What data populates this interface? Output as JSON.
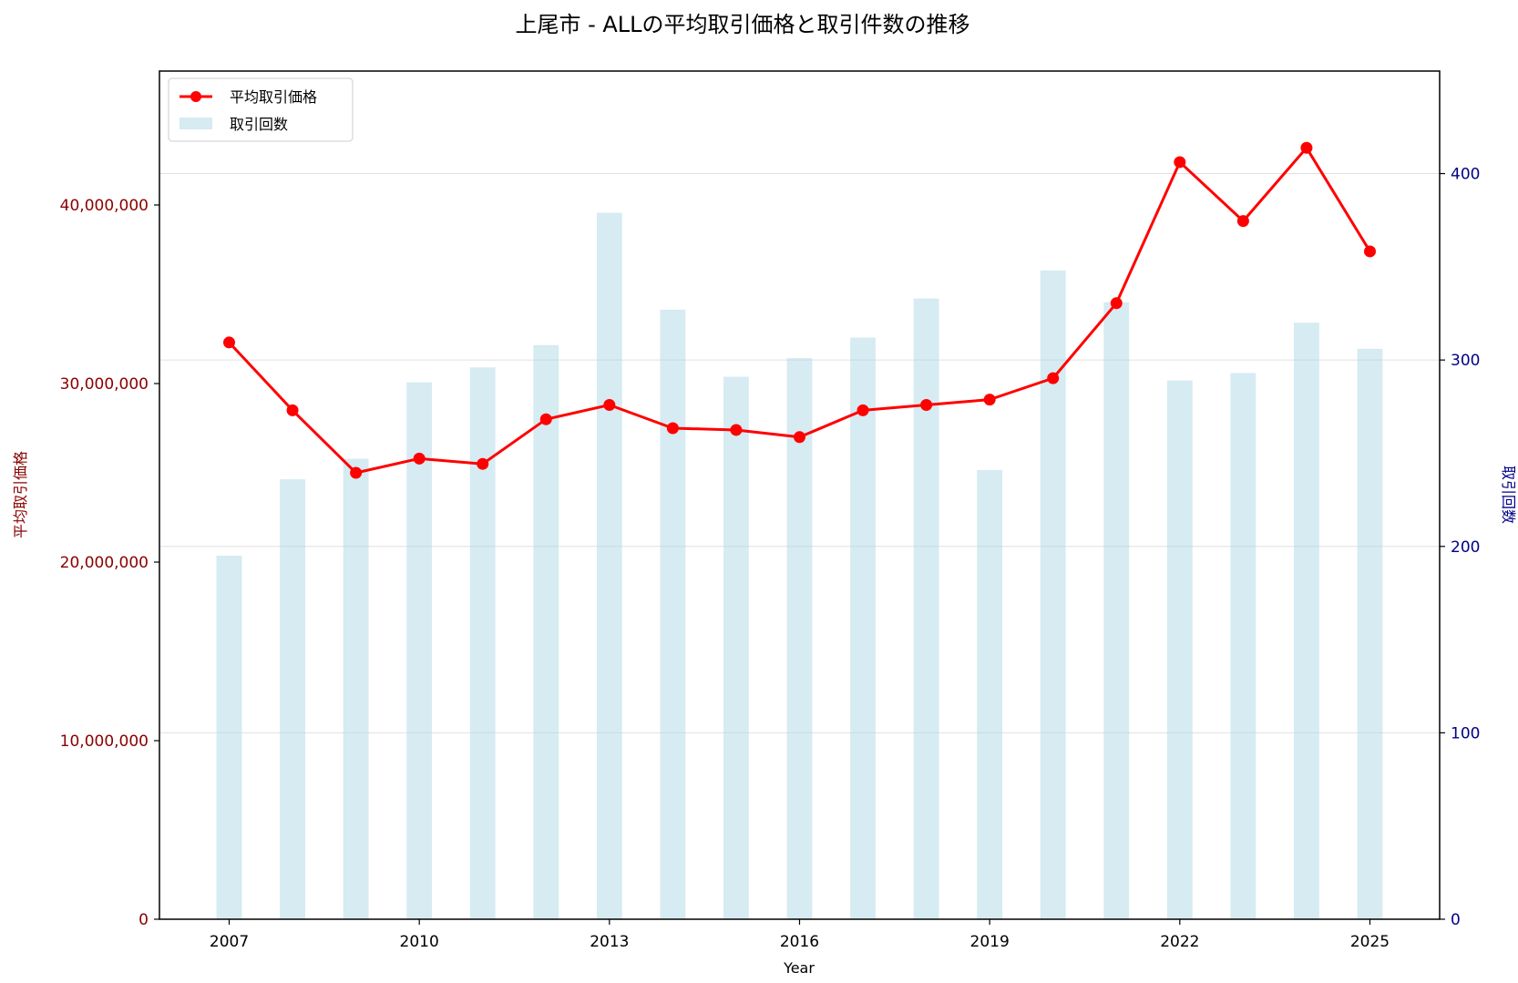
{
  "chart_data": {
    "type": "bar+line",
    "title": "上尾市 - ALLの平均取引価格と取引件数の推移",
    "xlabel": "Year",
    "ylabel_left": "平均取引価格",
    "ylabel_right": "取引回数",
    "x": [
      2007,
      2008,
      2009,
      2010,
      2011,
      2012,
      2013,
      2014,
      2015,
      2016,
      2017,
      2018,
      2019,
      2020,
      2021,
      2022,
      2023,
      2024,
      2025
    ],
    "x_ticks": [
      "2007",
      "2010",
      "2013",
      "2016",
      "2019",
      "2022",
      "2025"
    ],
    "xlim": [
      2005.9,
      2026.1
    ],
    "ylim_left": [
      0,
      47500000
    ],
    "ylim_right": [
      0,
      455
    ],
    "y_ticks_left": [
      "0",
      "10,000,000",
      "20,000,000",
      "30,000,000",
      "40,000,000"
    ],
    "y_ticks_right": [
      "0",
      "100",
      "200",
      "300",
      "400"
    ],
    "grid": "horizontal",
    "legend_position": "top-left",
    "series": [
      {
        "name": "平均取引価格",
        "type": "line",
        "axis": "left",
        "color": "#ff0000",
        "values": [
          32300000,
          28500000,
          25000000,
          25800000,
          25500000,
          28000000,
          28800000,
          27500000,
          27400000,
          27000000,
          28500000,
          28800000,
          29100000,
          30300000,
          34500000,
          42400000,
          39100000,
          43200000,
          37400000
        ]
      },
      {
        "name": "取引回数",
        "type": "bar",
        "axis": "right",
        "color": "#add8e6",
        "values": [
          195,
          236,
          247,
          288,
          296,
          308,
          379,
          327,
          291,
          301,
          312,
          333,
          241,
          348,
          331,
          289,
          293,
          320,
          306
        ]
      }
    ]
  }
}
